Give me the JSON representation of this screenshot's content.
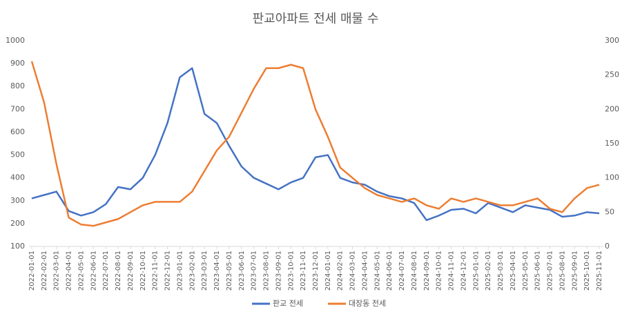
{
  "chart_data": {
    "type": "line",
    "title": "판교아파트 전세 매물 수",
    "categories": [
      "2022-01-01",
      "2022-02-01",
      "2022-03-01",
      "2022-04-01",
      "2022-05-01",
      "2022-06-01",
      "2022-07-01",
      "2022-08-01",
      "2022-09-01",
      "2022-10-01",
      "2022-11-01",
      "2022-12-01",
      "2023-01-01",
      "2023-02-01",
      "2023-03-01",
      "2023-04-01",
      "2023-05-01",
      "2023-06-01",
      "2023-07-01",
      "2023-08-01",
      "2023-09-01",
      "2023-10-01",
      "2023-11-01",
      "2023-12-01",
      "2024-01-01",
      "2024-02-01",
      "2024-03-01",
      "2024-04-01",
      "2024-05-01",
      "2024-06-01",
      "2024-07-01",
      "2024-08-01",
      "2024-09-01",
      "2024-10-01",
      "2024-11-01",
      "2024-12-01",
      "2025-01-01",
      "2025-02-01",
      "2025-03-01",
      "2025-04-01",
      "2025-05-01",
      "2025-06-01",
      "2025-07-01",
      "2025-08-01",
      "2025-09-01",
      "2025-10-01",
      "2025-11-01"
    ],
    "series": [
      {
        "name": "판교 전세",
        "color": "#4472c4",
        "values": [
          310,
          325,
          340,
          255,
          235,
          250,
          285,
          360,
          350,
          400,
          500,
          640,
          840,
          880,
          680,
          640,
          540,
          450,
          400,
          375,
          350,
          380,
          400,
          490,
          500,
          400,
          380,
          370,
          340,
          320,
          310,
          290,
          215,
          235,
          260,
          265,
          245,
          290,
          270,
          250,
          280,
          270,
          260,
          230,
          235,
          250,
          245
        ]
      },
      {
        "name": "대장동 전세",
        "color": "#ed7d31",
        "axis": "y2",
        "values": [
          270,
          210,
          120,
          42,
          32,
          30,
          35,
          40,
          50,
          60,
          65,
          65,
          65,
          80,
          110,
          140,
          160,
          195,
          230,
          260,
          260,
          265,
          260,
          200,
          160,
          115,
          100,
          85,
          75,
          70,
          65,
          70,
          60,
          55,
          70,
          65,
          70,
          65,
          60,
          60,
          65,
          70,
          55,
          50,
          70,
          85,
          90
        ]
      }
    ],
    "ylim": [
      100,
      1000
    ],
    "yticks": [
      100,
      200,
      300,
      400,
      500,
      600,
      700,
      800,
      900,
      1000
    ],
    "y2lim": [
      0,
      300
    ],
    "y2ticks": [
      0,
      50,
      100,
      150,
      200,
      250,
      300
    ],
    "legend": "bottom"
  }
}
